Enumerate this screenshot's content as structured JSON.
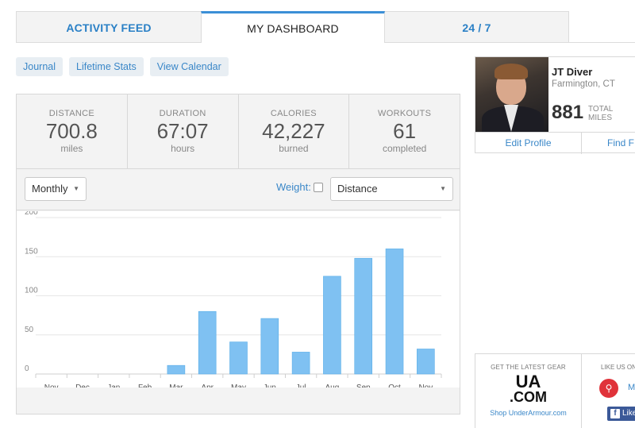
{
  "tabs": [
    {
      "label": "ACTIVITY FEED"
    },
    {
      "label": "MY DASHBOARD",
      "active": true
    },
    {
      "label": "24 / 7"
    }
  ],
  "subnav": [
    "Journal",
    "Lifetime Stats",
    "View Calendar"
  ],
  "stats": [
    {
      "label": "DISTANCE",
      "value": "700.8",
      "unit": "miles"
    },
    {
      "label": "DURATION",
      "value": "67:07",
      "unit": "hours"
    },
    {
      "label": "CALORIES",
      "value": "42,227",
      "unit": "burned"
    },
    {
      "label": "WORKOUTS",
      "value": "61",
      "unit": "completed"
    }
  ],
  "controls": {
    "period": "Monthly",
    "weight_label": "Weight:",
    "metric": "Distance"
  },
  "chart_data": {
    "type": "bar",
    "categories": [
      "Nov",
      "Dec",
      "Jan",
      "Feb",
      "Mar",
      "Apr",
      "May",
      "Jun",
      "Jul",
      "Aug",
      "Sep",
      "Oct",
      "Nov"
    ],
    "values": [
      0,
      0,
      0,
      0,
      11,
      80,
      41,
      71,
      28,
      125,
      148,
      160,
      32
    ],
    "ylim": [
      0,
      200
    ],
    "yticks": [
      0,
      50,
      100,
      150,
      200
    ],
    "grid": true,
    "bar_color": "#7fc1f2",
    "title": "",
    "xlabel": "",
    "ylabel": ""
  },
  "profile": {
    "name": "JT Diver",
    "location": "Farmington, CT",
    "total_miles": "881",
    "total_label_1": "TOTAL",
    "total_label_2": "MILES",
    "edit_label": "Edit Profile",
    "find_label": "Find F"
  },
  "promo": {
    "left_heading": "GET THE LATEST GEAR",
    "logo_top": "UA",
    "logo_bottom": ".COM",
    "shop_link": "Shop UnderArmour.com",
    "right_heading": "LIKE US ON",
    "bike_text": "M",
    "fb_text": "Like"
  }
}
